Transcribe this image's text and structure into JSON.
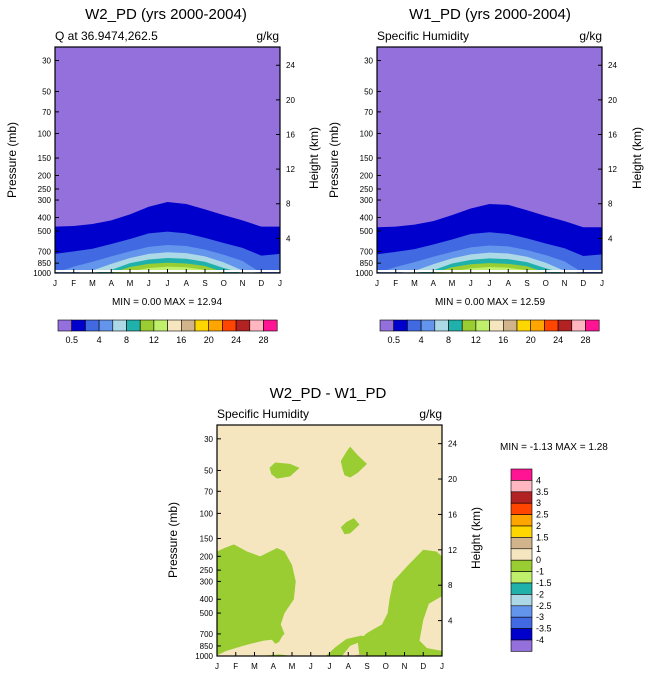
{
  "chart_data": [
    {
      "type": "heatmap",
      "title": "W2_PD (yrs 2000-2004)",
      "left_subtitle": "Q at 36.9474,262.5",
      "right_subtitle": "g/kg",
      "ylabel": "Pressure (mb)",
      "ylabel_right": "Height (km)",
      "x_ticks": [
        "J",
        "F",
        "M",
        "A",
        "M",
        "J",
        "J",
        "A",
        "S",
        "O",
        "N",
        "D",
        "J"
      ],
      "pressure_ticks": [
        30,
        50,
        70,
        100,
        150,
        200,
        250,
        300,
        400,
        500,
        700,
        850,
        1000
      ],
      "height_ticks": [
        4,
        8,
        12,
        16,
        20,
        24
      ],
      "ylim": [
        1000,
        24
      ],
      "min_max_text": "MIN =   0.00 MAX =  12.94",
      "legend_labels": [
        "0.5",
        "4",
        "8",
        "12",
        "16",
        "20",
        "24",
        "28"
      ],
      "colors": [
        "#9370db",
        "#0000cd",
        "#4169e1",
        "#6495ed",
        "#add8e6",
        "#20b2aa",
        "#9acd32",
        "#c0ef6c",
        "#f5e6c0",
        "#d2b48c",
        "#ffd700",
        "#ffa500",
        "#ff4500",
        "#b22222",
        "#ffb6c1",
        "#ff1493"
      ],
      "contours": {
        "x": [
          0,
          1,
          2,
          3,
          4,
          5,
          6,
          7,
          8,
          9,
          10,
          11,
          12
        ],
        "levels": [
          "0.5",
          "4",
          "8",
          "12",
          "16"
        ],
        "level_colors": [
          "#0000cd",
          "#4169e1",
          "#6495ed",
          "#add8e6",
          "#20b2aa",
          "#9acd32",
          "#c0ef6c"
        ],
        "boundaries_mb": [
          [
            465,
            460,
            445,
            420,
            380,
            335,
            310,
            320,
            350,
            385,
            420,
            465,
            465
          ],
          [
            730,
            700,
            670,
            620,
            570,
            520,
            505,
            520,
            560,
            610,
            660,
            750,
            730
          ],
          [
            1000,
            900,
            830,
            760,
            700,
            650,
            630,
            640,
            680,
            740,
            820,
            1000,
            1000
          ],
          [
            1000,
            1000,
            960,
            860,
            780,
            730,
            710,
            720,
            760,
            840,
            960,
            1000,
            1000
          ],
          [
            1000,
            1000,
            1000,
            950,
            850,
            800,
            780,
            790,
            830,
            920,
            1000,
            1000,
            1000
          ],
          [
            1000,
            1000,
            1000,
            1000,
            905,
            860,
            845,
            855,
            890,
            990,
            1000,
            1000,
            1000
          ],
          [
            1000,
            1000,
            1000,
            1000,
            975,
            920,
            900,
            910,
            950,
            1000,
            1000,
            1000,
            1000
          ]
        ]
      }
    },
    {
      "type": "heatmap",
      "title": "W1_PD (yrs 2000-2004)",
      "left_subtitle": "Specific Humidity",
      "right_subtitle": "g/kg",
      "ylabel": "Pressure (mb)",
      "ylabel_right": "Height (km)",
      "x_ticks": [
        "J",
        "F",
        "M",
        "A",
        "M",
        "J",
        "J",
        "A",
        "S",
        "O",
        "N",
        "D",
        "J"
      ],
      "pressure_ticks": [
        30,
        50,
        70,
        100,
        150,
        200,
        250,
        300,
        400,
        500,
        700,
        850,
        1000
      ],
      "height_ticks": [
        4,
        8,
        12,
        16,
        20,
        24
      ],
      "ylim": [
        1000,
        24
      ],
      "min_max_text": "MIN =   0.00 MAX =  12.59",
      "legend_labels": [
        "0.5",
        "4",
        "8",
        "12",
        "16",
        "20",
        "24",
        "28"
      ],
      "colors": [
        "#9370db",
        "#0000cd",
        "#4169e1",
        "#6495ed",
        "#add8e6",
        "#20b2aa",
        "#9acd32",
        "#c0ef6c",
        "#f5e6c0",
        "#d2b48c",
        "#ffd700",
        "#ffa500",
        "#ff4500",
        "#b22222",
        "#ffb6c1",
        "#ff1493"
      ],
      "contours": {
        "x": [
          0,
          1,
          2,
          3,
          4,
          5,
          6,
          7,
          8,
          9,
          10,
          11,
          12
        ],
        "levels": [
          "0.5",
          "4",
          "8",
          "12",
          "16"
        ],
        "level_colors": [
          "#0000cd",
          "#4169e1",
          "#6495ed",
          "#add8e6",
          "#20b2aa",
          "#9acd32",
          "#c0ef6c"
        ],
        "boundaries_mb": [
          [
            470,
            465,
            450,
            425,
            385,
            345,
            320,
            325,
            355,
            390,
            425,
            470,
            470
          ],
          [
            735,
            705,
            675,
            625,
            575,
            525,
            510,
            525,
            565,
            615,
            665,
            755,
            735
          ],
          [
            1000,
            905,
            835,
            765,
            705,
            655,
            635,
            645,
            685,
            745,
            825,
            1000,
            1000
          ],
          [
            1000,
            1000,
            965,
            865,
            785,
            735,
            715,
            725,
            765,
            845,
            965,
            1000,
            1000
          ],
          [
            1000,
            1000,
            1000,
            955,
            855,
            805,
            785,
            795,
            835,
            925,
            1000,
            1000,
            1000
          ],
          [
            1000,
            1000,
            1000,
            1000,
            910,
            865,
            850,
            860,
            895,
            995,
            1000,
            1000,
            1000
          ],
          [
            1000,
            1000,
            1000,
            1000,
            980,
            925,
            905,
            915,
            955,
            1000,
            1000,
            1000,
            1000
          ]
        ]
      }
    },
    {
      "type": "heatmap",
      "title": "W2_PD - W1_PD",
      "left_subtitle": "Specific Humidity",
      "right_subtitle": "g/kg",
      "ylabel": "Pressure (mb)",
      "ylabel_right": "Height (km)",
      "x_ticks": [
        "J",
        "F",
        "M",
        "A",
        "M",
        "J",
        "J",
        "A",
        "S",
        "O",
        "N",
        "D",
        "J"
      ],
      "pressure_ticks": [
        30,
        50,
        70,
        100,
        150,
        200,
        250,
        300,
        400,
        500,
        700,
        850,
        1000
      ],
      "height_ticks": [
        4,
        8,
        12,
        16,
        20,
        24
      ],
      "ylim": [
        1000,
        24
      ],
      "min_max_text": "MIN =  -1.13 MAX =   1.28",
      "legend_labels": [
        "4",
        "3.5",
        "3",
        "2.5",
        "2",
        "1.5",
        "1",
        "0",
        "-1",
        "-1.5",
        "-2",
        "-2.5",
        "-3",
        "-3.5",
        "-4"
      ],
      "colors": [
        "#ff1493",
        "#ffb6c1",
        "#b22222",
        "#ff4500",
        "#ffa500",
        "#ffd700",
        "#d2b48c",
        "#f5e6c0",
        "#9acd32",
        "#c0ef6c",
        "#20b2aa",
        "#add8e6",
        "#6495ed",
        "#4169e1",
        "#0000cd",
        "#9370db"
      ],
      "background_color": "#f5e6c0",
      "negative_color": "#9acd32",
      "positive_color": "#d2b48c",
      "regions": [
        {
          "sign": "negative",
          "points": [
            [
              2.2,
              1000
            ],
            [
              2.9,
              985
            ],
            [
              3.3,
              975
            ],
            [
              4.0,
              1000
            ]
          ]
        },
        {
          "sign": "negative",
          "points": [
            [
              0,
              990
            ],
            [
              0.5,
              920
            ],
            [
              1.5,
              840
            ],
            [
              2.5,
              780
            ],
            [
              3.3,
              760
            ],
            [
              3.6,
              700
            ],
            [
              3.4,
              600
            ],
            [
              3.6,
              500
            ],
            [
              4.1,
              400
            ],
            [
              4.2,
              300
            ],
            [
              4.0,
              230
            ],
            [
              3.6,
              185
            ],
            [
              3.2,
              175
            ],
            [
              2.3,
              200
            ],
            [
              1.6,
              185
            ],
            [
              0.9,
              165
            ],
            [
              0.4,
              175
            ],
            [
              0,
              185
            ]
          ]
        },
        {
          "sign": "negative",
          "points": [
            [
              7.6,
              1000
            ],
            [
              7.5,
              790
            ],
            [
              8.0,
              690
            ],
            [
              8.8,
              600
            ],
            [
              9.1,
              500
            ],
            [
              9.2,
              400
            ],
            [
              9.4,
              300
            ],
            [
              10.2,
              230
            ],
            [
              11.0,
              180
            ],
            [
              11.7,
              185
            ],
            [
              12,
              200
            ],
            [
              12,
              380
            ],
            [
              11.3,
              430
            ],
            [
              11.0,
              560
            ],
            [
              10.8,
              780
            ],
            [
              11.2,
              880
            ],
            [
              12,
              920
            ],
            [
              12,
              1000
            ]
          ]
        },
        {
          "sign": "negative",
          "points": [
            [
              5.8,
              1000
            ],
            [
              6.3,
              870
            ],
            [
              6.9,
              760
            ],
            [
              7.7,
              720
            ],
            [
              8.3,
              755
            ],
            [
              8.3,
              790
            ],
            [
              7.6,
              800
            ],
            [
              7.1,
              850
            ],
            [
              6.7,
              990
            ],
            [
              6.4,
              1000
            ]
          ]
        },
        {
          "sign": "negative",
          "points": [
            [
              2.9,
              690
            ],
            [
              3.1,
              620
            ],
            [
              3.3,
              580
            ],
            [
              3.5,
              650
            ],
            [
              3.5,
              720
            ],
            [
              3.3,
              800
            ],
            [
              3.1,
              820
            ],
            [
              2.9,
              760
            ]
          ]
        },
        {
          "sign": "negative",
          "points": [
            [
              2.8,
              48
            ],
            [
              3.1,
              44
            ],
            [
              3.9,
              45
            ],
            [
              4.4,
              48
            ],
            [
              3.9,
              55
            ],
            [
              3.2,
              57
            ],
            [
              2.9,
              53
            ]
          ]
        },
        {
          "sign": "negative",
          "points": [
            [
              6.7,
              49
            ],
            [
              6.6,
              43
            ],
            [
              6.9,
              37
            ],
            [
              7.1,
              34
            ],
            [
              7.5,
              39
            ],
            [
              8.0,
              45
            ],
            [
              7.5,
              52
            ],
            [
              7.1,
              56
            ],
            [
              6.8,
              54
            ]
          ]
        },
        {
          "sign": "negative",
          "points": [
            [
              6.6,
              125
            ],
            [
              6.9,
              115
            ],
            [
              7.3,
              108
            ],
            [
              7.6,
              120
            ],
            [
              7.1,
              138
            ],
            [
              6.8,
              140
            ]
          ]
        },
        {
          "sign": "positive",
          "points": [
            [
              7.2,
              1000
            ],
            [
              7.6,
              975
            ],
            [
              7.9,
              985
            ],
            [
              8.2,
              1000
            ]
          ]
        }
      ]
    }
  ]
}
